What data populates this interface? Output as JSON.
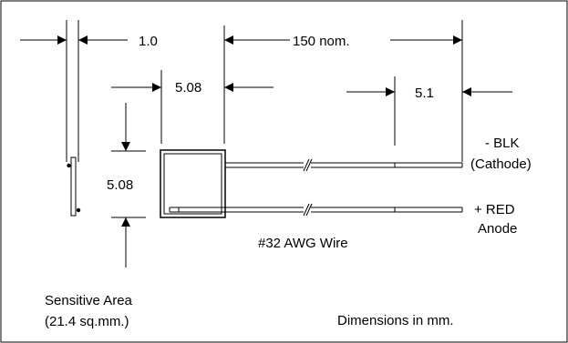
{
  "dimensions": {
    "thickness": "1.0",
    "length": "150 nom.",
    "width": "5.08",
    "height": "5.08",
    "lead_length": "5.1"
  },
  "leads": {
    "cathode_line1": "- BLK",
    "cathode_line2": "(Cathode)",
    "anode_line1": "+ RED",
    "anode_line2": "Anode",
    "wire": "#32 AWG Wire"
  },
  "notes": {
    "sensitive_line1": "Sensitive Area",
    "sensitive_line2": "(21.4 sq.mm.)",
    "units": "Dimensions in mm."
  }
}
